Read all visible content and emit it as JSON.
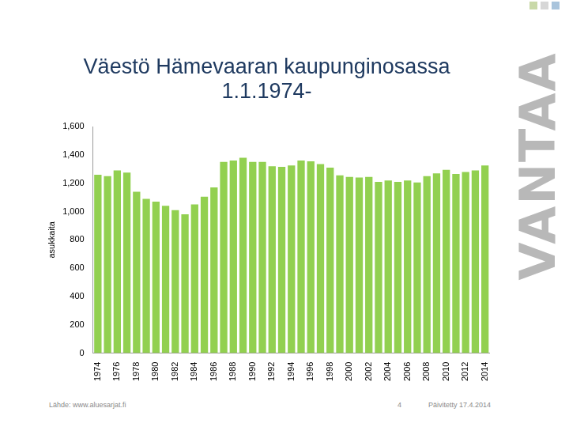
{
  "chart_data": {
    "type": "bar",
    "title": [
      "Väestö Hämevaaran kaupunginosassa",
      "1.1.1974-"
    ],
    "y_label": "asukkaita",
    "categories": [
      "1974",
      null,
      "1976",
      null,
      "1978",
      null,
      "1980",
      null,
      "1982",
      null,
      "1984",
      null,
      "1986",
      null,
      "1988",
      null,
      "1990",
      null,
      "1992",
      null,
      "1994",
      null,
      "1996",
      null,
      "1998",
      null,
      "2000",
      null,
      "2002",
      null,
      "2004",
      null,
      "2006",
      null,
      "2008",
      null,
      "2010",
      null,
      "2012",
      null,
      "2014"
    ],
    "values": [
      1260,
      1250,
      1290,
      1275,
      1140,
      1090,
      1070,
      1040,
      1010,
      980,
      1050,
      1105,
      1170,
      1350,
      1360,
      1380,
      1350,
      1350,
      1320,
      1315,
      1325,
      1360,
      1355,
      1335,
      1310,
      1255,
      1245,
      1240,
      1245,
      1210,
      1220,
      1210,
      1220,
      1205,
      1250,
      1270,
      1295,
      1265,
      1280,
      1290,
      1325
    ],
    "color": "#92d050",
    "ylim": [
      0,
      1600
    ],
    "yticks": [
      0,
      200,
      400,
      600,
      800,
      {
        "value": 1000,
        "label": "1,000"
      },
      {
        "value": 1200,
        "label": "1,200"
      },
      {
        "value": 1400,
        "label": "1,400"
      },
      {
        "value": 1600,
        "label": "1,600"
      }
    ],
    "grid": false
  },
  "footer": {
    "source": "Lähde: www.aluesarjat.fi",
    "page": "4",
    "updated": "Päivitetty 17.4.2014"
  },
  "logo": "VANTAA"
}
